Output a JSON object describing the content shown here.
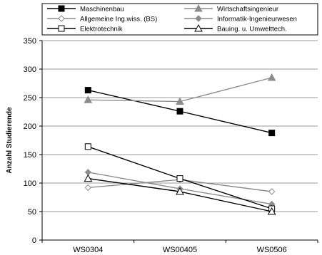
{
  "chart_data": {
    "type": "line",
    "title": "",
    "xlabel": "",
    "ylabel": "Anzahl Studierende",
    "categories": [
      "WS0304",
      "WS00405",
      "WS0506"
    ],
    "ylim": [
      0,
      350
    ],
    "yticks": [
      0,
      50,
      100,
      150,
      200,
      250,
      300,
      350
    ],
    "grid": true,
    "legend_position": "top",
    "series": [
      {
        "name": "Maschinenbau",
        "values": [
          263,
          226,
          188
        ],
        "color": "#000000",
        "marker": "square-filled"
      },
      {
        "name": "Wirtschaftsingenieur",
        "values": [
          246,
          243,
          285
        ],
        "color": "#8c8c8c",
        "marker": "triangle-filled"
      },
      {
        "name": "Allgemeine Ing.wiss. (BS)",
        "values": [
          92,
          106,
          85
        ],
        "color": "#8c8c8c",
        "marker": "diamond-open"
      },
      {
        "name": "Informatik-Ingenieurwesen",
        "values": [
          119,
          90,
          63
        ],
        "color": "#8c8c8c",
        "marker": "diamond-filled"
      },
      {
        "name": "Elektrotechnik",
        "values": [
          164,
          108,
          55
        ],
        "color": "#000000",
        "marker": "square-open"
      },
      {
        "name": "Bauing. u. Umwelttech.",
        "values": [
          108,
          85,
          50
        ],
        "color": "#000000",
        "marker": "triangle-open"
      }
    ]
  }
}
